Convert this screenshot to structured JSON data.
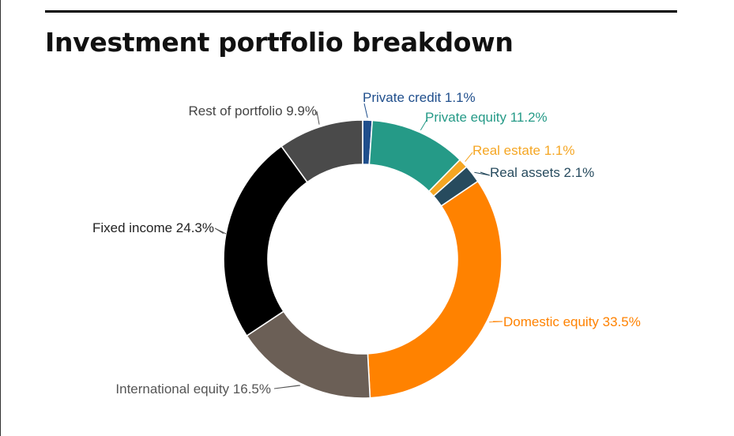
{
  "title": "Investment portfolio breakdown",
  "chart_data": {
    "type": "pie",
    "variant": "donut",
    "title": "Investment portfolio breakdown",
    "slices": [
      {
        "label": "Private credit",
        "value": 1.1,
        "display": "Private credit 1.1%",
        "color": "#1f4e8c",
        "label_color": "#1f4e8c"
      },
      {
        "label": "Private equity",
        "value": 11.2,
        "display": "Private equity 11.2%",
        "color": "#259a87",
        "label_color": "#259a87"
      },
      {
        "label": "Real estate",
        "value": 1.1,
        "display": "Real estate 1.1%",
        "color": "#f5a623",
        "label_color": "#f5a623"
      },
      {
        "label": "Real assets",
        "value": 2.1,
        "display": "Real assets 2.1%",
        "color": "#274b5e",
        "label_color": "#274b5e"
      },
      {
        "label": "Domestic equity",
        "value": 33.5,
        "display": "Domestic equity 33.5%",
        "color": "#ff8200",
        "label_color": "#ff8200"
      },
      {
        "label": "International equity",
        "value": 16.5,
        "display": "International equity 16.5%",
        "color": "#6b5f56",
        "label_color": "#555555"
      },
      {
        "label": "Fixed income",
        "value": 24.3,
        "display": "Fixed income 24.3%",
        "color": "#000000",
        "label_color": "#222222"
      },
      {
        "label": "Rest of portfolio",
        "value": 9.9,
        "display": "Rest of portfolio 9.9%",
        "color": "#4a4a4a",
        "label_color": "#444444"
      }
    ],
    "start": "12 o'clock",
    "direction": "clockwise",
    "legend": "none",
    "labels": "outside with leader lines"
  }
}
